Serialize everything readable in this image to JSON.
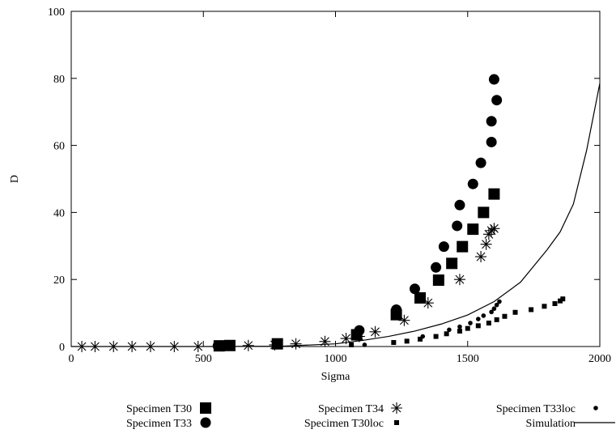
{
  "chart_data": {
    "type": "scatter",
    "title": "",
    "xlabel": "Sigma",
    "ylabel": "D",
    "xlim": [
      0,
      2000
    ],
    "ylim": [
      0,
      100
    ],
    "xticks": [
      0,
      500,
      1000,
      1500,
      2000
    ],
    "yticks": [
      0,
      20,
      40,
      60,
      80,
      100
    ],
    "grid": false,
    "legend_position": "bottom",
    "series": [
      {
        "name": "Specimen T30",
        "marker": "filled-square-large",
        "color": "#000000",
        "x": [
          560,
          600,
          780,
          1080,
          1230,
          1320,
          1390,
          1440,
          1480,
          1520,
          1560,
          1600
        ],
        "y": [
          0.2,
          0.3,
          0.8,
          3.5,
          9.5,
          14.5,
          19.8,
          24.8,
          29.8,
          35,
          40,
          45.5
        ]
      },
      {
        "name": "Specimen T33",
        "marker": "filled-circle-large",
        "color": "#000000",
        "x": [
          555,
          1090,
          1230,
          1300,
          1380,
          1410,
          1460,
          1470,
          1520,
          1550,
          1590,
          1590,
          1600,
          1610
        ],
        "y": [
          0.2,
          4.8,
          11,
          17.2,
          23.6,
          29.8,
          36,
          42.2,
          48.5,
          54.8,
          61,
          67.2,
          79.7,
          73.5
        ]
      },
      {
        "name": "Specimen T34",
        "marker": "star",
        "color": "#000000",
        "x": [
          40,
          90,
          160,
          230,
          300,
          390,
          480,
          570,
          670,
          770,
          850,
          960,
          1040,
          1090,
          1150,
          1260,
          1350,
          1470,
          1550,
          1570,
          1580,
          1590,
          1600
        ],
        "y": [
          0,
          0,
          0,
          0,
          0,
          0,
          0,
          0.2,
          0.3,
          0.5,
          0.8,
          1.5,
          2.4,
          3,
          4.4,
          7.8,
          13,
          20,
          26.8,
          30.5,
          33.5,
          34.6,
          35.2
        ]
      },
      {
        "name": "Specimen T30loc",
        "marker": "filled-square-small",
        "color": "#000000",
        "x": [
          1060,
          1220,
          1270,
          1320,
          1380,
          1420,
          1470,
          1500,
          1540,
          1580,
          1610,
          1640,
          1680,
          1740,
          1790,
          1830,
          1850,
          1860
        ],
        "y": [
          0.5,
          1.2,
          1.6,
          2.2,
          3,
          3.8,
          4.6,
          5.4,
          6.2,
          7,
          8,
          9,
          10.2,
          11,
          12,
          12.8,
          13.6,
          14.2
        ]
      },
      {
        "name": "Specimen T33loc",
        "marker": "filled-circle-small",
        "color": "#000000",
        "x": [
          1110,
          1330,
          1430,
          1470,
          1510,
          1540,
          1560,
          1590,
          1600,
          1610,
          1620
        ],
        "y": [
          0.5,
          3,
          5,
          5.9,
          7,
          8.2,
          9.2,
          10.3,
          11.3,
          12.4,
          13.4
        ]
      },
      {
        "name": "Simulation",
        "marker": "line",
        "color": "#000000",
        "x": [
          0,
          500,
          800,
          1000,
          1100,
          1200,
          1300,
          1400,
          1500,
          1600,
          1700,
          1800,
          1850,
          1900,
          1950,
          2000
        ],
        "y": [
          0,
          0,
          0.1,
          0.8,
          1.8,
          3,
          4.6,
          6.7,
          9.4,
          13.4,
          19.2,
          28.8,
          34.2,
          42.5,
          58.5,
          78.5
        ]
      }
    ]
  }
}
